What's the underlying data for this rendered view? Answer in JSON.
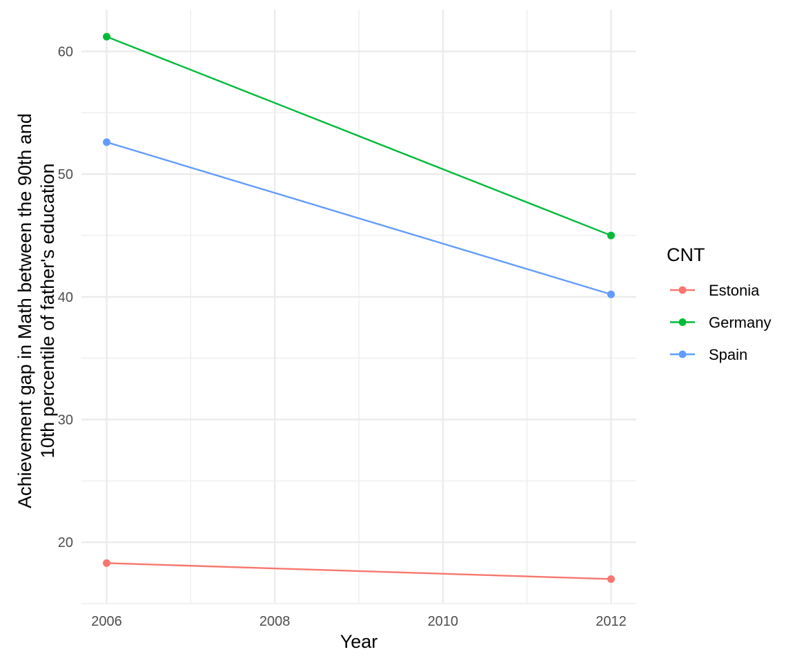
{
  "chart_data": {
    "type": "line",
    "title": "",
    "xlabel": "Year",
    "ylabel": [
      "Achievement gap in Math between the 90th and",
      "10th percentile of father's education"
    ],
    "x": [
      2006,
      2012
    ],
    "xlim": [
      2005.7,
      2012.3
    ],
    "ylim": [
      15,
      63.4
    ],
    "x_ticks": [
      2006,
      2008,
      2010,
      2012
    ],
    "x_tick_labels": [
      "2006",
      "2008",
      "2010",
      "2012"
    ],
    "x_minor_ticks": [
      2007,
      2009,
      2011
    ],
    "y_ticks": [
      20,
      30,
      40,
      50,
      60
    ],
    "y_tick_labels": [
      "20",
      "30",
      "40",
      "50",
      "60"
    ],
    "y_minor_ticks": [
      15,
      25,
      35,
      45,
      55
    ],
    "grid": true,
    "legend": {
      "title": "CNT",
      "position": "right"
    },
    "series": [
      {
        "name": "Estonia",
        "color": "#F8766D",
        "values": [
          18.3,
          17.0
        ]
      },
      {
        "name": "Germany",
        "color": "#00BA38",
        "values": [
          61.2,
          45.0
        ]
      },
      {
        "name": "Spain",
        "color": "#619CFF",
        "values": [
          52.6,
          40.2
        ]
      }
    ]
  }
}
